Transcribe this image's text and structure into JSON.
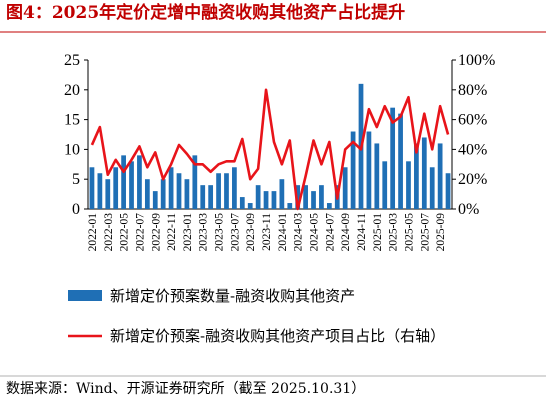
{
  "chart_data": {
    "type": "bar-line",
    "title": "图4：2025年定价定增中融资收购其他资产占比提升",
    "source": "数据来源：Wind、开源证券研究所（截至 2025.10.31）",
    "categories": [
      "2022-01",
      null,
      "2022-03",
      null,
      "2022-05",
      null,
      "2022-07",
      null,
      "2022-09",
      null,
      "2022-11",
      null,
      "2023-01",
      null,
      "2023-03",
      null,
      "2023-05",
      null,
      "2023-07",
      null,
      "2023-09",
      null,
      "2023-11",
      null,
      "2024-01",
      null,
      "2024-03",
      null,
      "2024-05",
      null,
      "2024-07",
      null,
      "2024-09",
      null,
      "2024-11",
      null,
      "2025-01",
      null,
      "2025-03",
      null,
      "2025-05",
      null,
      "2025-07",
      null,
      "2025-09",
      null
    ],
    "series": [
      {
        "name": "新增定价预案数量-融资收购其他资产",
        "color": "#1f6fb5",
        "kind": "bar",
        "values": [
          7,
          6,
          5,
          7,
          9,
          8,
          9,
          5,
          3,
          5,
          7,
          6,
          5,
          9,
          4,
          4,
          6,
          6,
          7,
          2,
          1,
          4,
          3,
          3,
          5,
          1,
          4,
          4,
          3,
          4,
          1,
          4,
          7,
          13,
          21,
          13,
          11,
          8,
          17,
          16,
          8,
          11,
          12,
          7,
          11,
          6
        ]
      },
      {
        "name": "新增定价预案-融资收购其他资产项目占比（右轴）",
        "color": "#e8141a",
        "kind": "line",
        "axis": "y2",
        "values": [
          43,
          55,
          23,
          33,
          25,
          33,
          42,
          28,
          38,
          20,
          30,
          43,
          37,
          30,
          30,
          25,
          30,
          32,
          32,
          47,
          20,
          27,
          80,
          45,
          30,
          46,
          0,
          22,
          46,
          30,
          45,
          7,
          40,
          45,
          40,
          67,
          55,
          69,
          58,
          62,
          75,
          38,
          64,
          40,
          69,
          50
        ]
      }
    ],
    "ylim": [
      0,
      25
    ],
    "yticks": [
      0,
      5,
      10,
      15,
      20,
      25
    ],
    "y2lim": [
      0,
      100
    ],
    "y2ticks": [
      {
        "value": 0,
        "label": "0%"
      },
      {
        "value": 20,
        "label": "20%"
      },
      {
        "value": 40,
        "label": "40%"
      },
      {
        "value": 60,
        "label": "60%"
      },
      {
        "value": 80,
        "label": "80%"
      },
      {
        "value": 100,
        "label": "100%"
      }
    ]
  }
}
